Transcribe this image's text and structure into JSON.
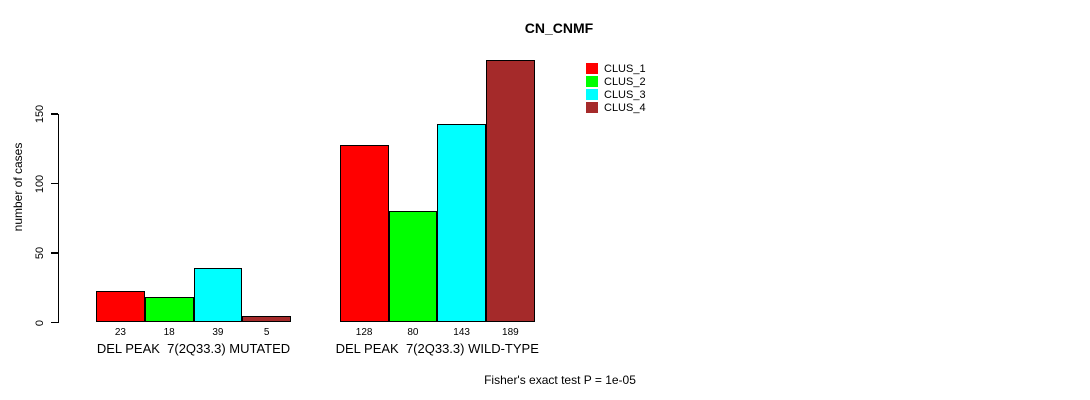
{
  "title": "CN_CNMF",
  "y_axis": {
    "label": "number of cases",
    "ticks": [
      "0",
      "50",
      "100",
      "150"
    ]
  },
  "footer": "Fisher's exact test P = 1e-05",
  "chart_data": {
    "type": "bar",
    "title": "CN_CNMF",
    "xlabel": "",
    "ylabel": "number of cases",
    "ylim": [
      0,
      150
    ],
    "yticks": [
      0,
      50,
      100,
      150
    ],
    "grid": false,
    "legend_position": "top-right",
    "categories": [
      "DEL PEAK  7(2Q33.3) MUTATED",
      "DEL PEAK  7(2Q33.3) WILD-TYPE"
    ],
    "series": [
      {
        "name": "CLUS_1",
        "color": "#FF0000",
        "values": [
          23,
          128
        ]
      },
      {
        "name": "CLUS_2",
        "color": "#00FF00",
        "values": [
          18,
          80
        ]
      },
      {
        "name": "CLUS_3",
        "color": "#00FFFF",
        "values": [
          39,
          143
        ]
      },
      {
        "name": "CLUS_4",
        "color": "#A52A2A",
        "values": [
          5,
          189
        ]
      }
    ],
    "annotation": "Fisher's exact test P = 1e-05"
  }
}
